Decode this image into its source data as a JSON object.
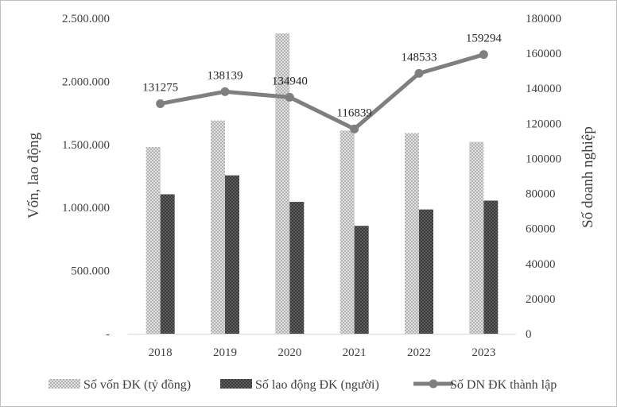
{
  "chart_data": {
    "type": "bar",
    "categories": [
      "2018",
      "2019",
      "2020",
      "2021",
      "2022",
      "2023"
    ],
    "series": [
      {
        "name": "Số vốn ĐK (tỷ đồng)",
        "kind": "bar",
        "axis": "left",
        "values": [
          1480000,
          1690000,
          2380000,
          1610000,
          1590000,
          1520000
        ]
      },
      {
        "name": "Số lao động ĐK (người)",
        "kind": "bar",
        "axis": "left",
        "values": [
          1105000,
          1255000,
          1045000,
          855000,
          985000,
          1055000
        ]
      },
      {
        "name": "Số DN ĐK thành lập",
        "kind": "line",
        "axis": "right",
        "values": [
          131275,
          138139,
          134940,
          116839,
          148533,
          159294
        ]
      }
    ],
    "data_labels": [
      "131275",
      "138139",
      "134940",
      "116839",
      "148533",
      "159294"
    ],
    "ylabel_left": "Vốn, lao động",
    "ylabel_right": "Số doanh nghiệp",
    "ylim_left": [
      0,
      2500000
    ],
    "ylim_right": [
      0,
      180000
    ],
    "yticks_left": [
      "-",
      "500.000",
      "1.000.000",
      "1.500.000",
      "2.000.000",
      "2.500.000"
    ],
    "yticks_right": [
      "0",
      "20000",
      "40000",
      "60000",
      "80000",
      "100000",
      "120000",
      "140000",
      "160000",
      "180000"
    ],
    "grid": false,
    "legend_position": "bottom",
    "colors": {
      "bar1": "#b0b0b0",
      "bar2": "#3d3d3d",
      "line": "#7f7f7f"
    }
  }
}
